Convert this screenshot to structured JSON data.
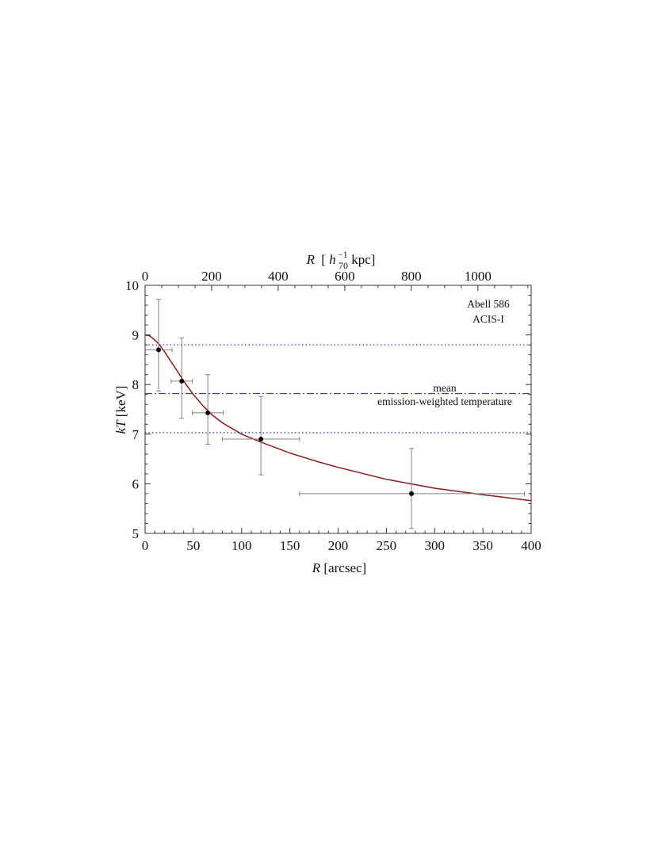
{
  "chart_data": {
    "type": "scatter",
    "xlabel": "R [arcsec]",
    "x_top_label": {
      "var": "R",
      "pre": "[",
      "h": "h",
      "sub": "70",
      "sup": "−1",
      "unit": "kpc]"
    },
    "ylabel": "kT [keV]",
    "xlim": [
      0,
      400
    ],
    "ylim": [
      5,
      10
    ],
    "xticks": [
      0,
      50,
      100,
      150,
      200,
      250,
      300,
      350,
      400
    ],
    "yticks": [
      5,
      6,
      7,
      8,
      9,
      10
    ],
    "xticks_top": [
      0,
      200,
      400,
      600,
      800,
      1000
    ],
    "kpc_per_arcsec": 2.9,
    "grid": false,
    "annotation": [
      "Abell 586",
      "ACIS-I"
    ],
    "points": [
      {
        "x": 14,
        "y": 8.7,
        "xerr": [
          14,
          14
        ],
        "yerr": [
          0.83,
          1.02
        ]
      },
      {
        "x": 38,
        "y": 8.07,
        "xerr": [
          11,
          11
        ],
        "yerr": [
          0.75,
          0.87
        ]
      },
      {
        "x": 65,
        "y": 7.43,
        "xerr": [
          16,
          16
        ],
        "yerr": [
          0.63,
          0.77
        ]
      },
      {
        "x": 120,
        "y": 6.9,
        "xerr": [
          40,
          40
        ],
        "yerr": [
          0.72,
          0.86
        ]
      },
      {
        "x": 276,
        "y": 5.8,
        "xerr": [
          116,
          117
        ],
        "yerr": [
          0.7,
          0.91
        ]
      }
    ],
    "model_curve": {
      "color": "#8b1a1a",
      "x": [
        0,
        5,
        10,
        15,
        20,
        30,
        40,
        50,
        60,
        70,
        80,
        100,
        120,
        150,
        180,
        200,
        250,
        300,
        350,
        400
      ],
      "y": [
        9.0,
        8.98,
        8.9,
        8.8,
        8.67,
        8.37,
        8.07,
        7.8,
        7.57,
        7.38,
        7.23,
        7.0,
        6.84,
        6.62,
        6.44,
        6.33,
        6.09,
        5.91,
        5.78,
        5.66
      ]
    },
    "hlines": [
      {
        "y": 8.8,
        "style": "dotted",
        "color": "#3a3acc"
      },
      {
        "y": 7.82,
        "style": "dashdot",
        "color": "#3a3acc",
        "label": [
          "mean",
          "emission-weighted temperature"
        ]
      },
      {
        "y": 7.03,
        "style": "dotted",
        "color": "#3a3acc"
      }
    ],
    "colors": {
      "axis": "#333333",
      "errorbar": "#808080",
      "point": "#000000"
    }
  }
}
